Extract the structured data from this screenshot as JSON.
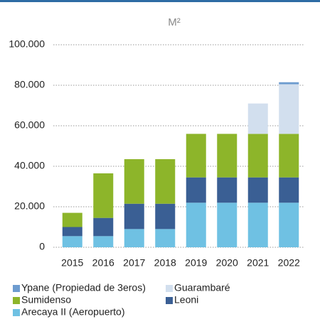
{
  "chart_data": {
    "type": "stacked_bar",
    "title": "M²",
    "categories": [
      "2015",
      "2016",
      "2017",
      "2018",
      "2019",
      "2020",
      "2021",
      "2022"
    ],
    "series": [
      {
        "name": "Arecaya II (Aeropuerto)",
        "color": "#6fc1e3",
        "values": [
          5500,
          5500,
          9000,
          9000,
          22000,
          22000,
          22000,
          22000
        ]
      },
      {
        "name": "Leoni",
        "color": "#3a5f94",
        "values": [
          4500,
          9000,
          12500,
          12500,
          12500,
          12500,
          12500,
          12500
        ]
      },
      {
        "name": "Sumidenso",
        "color": "#8db52a",
        "values": [
          7000,
          22000,
          22000,
          22000,
          21500,
          21500,
          21500,
          21500
        ]
      },
      {
        "name": "Guarambaré",
        "color": "#d2dfee",
        "values": [
          0,
          0,
          0,
          0,
          0,
          0,
          15000,
          24500
        ]
      },
      {
        "name": "Ypane (Propiedad de 3eros)",
        "color": "#6d9ccf",
        "values": [
          0,
          0,
          0,
          0,
          0,
          0,
          0,
          1000
        ]
      }
    ],
    "ylim": [
      0,
      100000
    ],
    "yticks": [
      0,
      {
        "value": 20000,
        "label": "20.000"
      },
      {
        "value": 40000,
        "label": "40.000"
      },
      {
        "value": 60000,
        "label": "60.000"
      },
      {
        "value": 80000,
        "label": "80.000"
      },
      {
        "value": 100000,
        "label": "100.000"
      }
    ],
    "grid": true
  }
}
